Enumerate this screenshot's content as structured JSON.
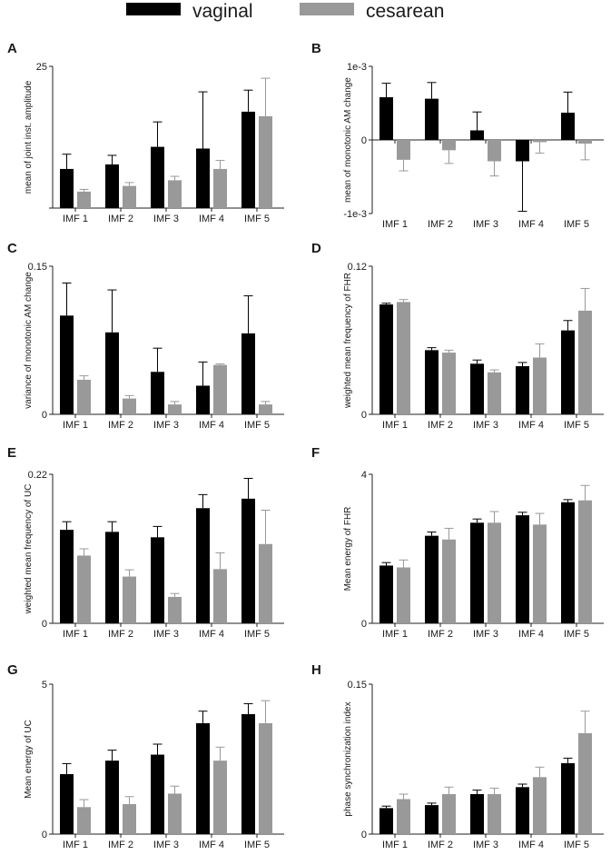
{
  "legend": {
    "vaginal": {
      "label": "vaginal",
      "color": "#000000"
    },
    "cesarean": {
      "label": "cesarean",
      "color": "#999999"
    }
  },
  "chart_data": [
    {
      "type": "bar",
      "panel": "A",
      "ylabel": "mean of joint inst. amplitude",
      "ylim": [
        0,
        25
      ],
      "yticks": [
        0,
        25
      ],
      "yticklabels": [
        "",
        "25"
      ],
      "categories": [
        "IMF 1",
        "IMF 2",
        "IMF 3",
        "IMF 4",
        "IMF 5"
      ],
      "series": [
        {
          "name": "vaginal",
          "values": [
            6.9,
            7.7,
            10.8,
            10.5,
            17.0
          ],
          "errors": [
            2.6,
            1.6,
            4.4,
            10.0,
            3.8
          ]
        },
        {
          "name": "cesarean",
          "values": [
            2.9,
            3.9,
            4.9,
            6.9,
            16.2
          ],
          "errors": [
            0.4,
            0.6,
            0.7,
            1.5,
            6.7
          ]
        }
      ]
    },
    {
      "type": "bar",
      "panel": "B",
      "ylabel": "mean of monotonic AM change",
      "ylim": [
        -0.001,
        0.001
      ],
      "yticks": [
        -0.001,
        0,
        0.001
      ],
      "yticklabels": [
        "-1e-3",
        "0",
        "1e-3"
      ],
      "categories": [
        "IMF 1",
        "IMF 2",
        "IMF 3",
        "IMF 4",
        "IMF 5"
      ],
      "series": [
        {
          "name": "vaginal",
          "values": [
            0.00058,
            0.00056,
            0.00013,
            -0.00029,
            0.00037
          ],
          "errors": [
            0.00019,
            0.00022,
            0.00025,
            0.00068,
            0.00028
          ]
        },
        {
          "name": "cesarean",
          "values": [
            -0.00027,
            -0.00014,
            -0.00029,
            -3e-05,
            -5e-05
          ],
          "errors": [
            0.00015,
            0.00018,
            0.0002,
            0.00015,
            0.00022
          ]
        }
      ]
    },
    {
      "type": "bar",
      "panel": "C",
      "ylabel": "variance of monotonic AM change",
      "ylim": [
        0,
        0.15
      ],
      "yticks": [
        0,
        0.15
      ],
      "yticklabels": [
        "0",
        "0.15"
      ],
      "categories": [
        "IMF 1",
        "IMF 2",
        "IMF 3",
        "IMF 4",
        "IMF 5"
      ],
      "series": [
        {
          "name": "vaginal",
          "values": [
            0.1,
            0.083,
            0.043,
            0.029,
            0.082
          ],
          "errors": [
            0.033,
            0.043,
            0.024,
            0.024,
            0.038
          ]
        },
        {
          "name": "cesarean",
          "values": [
            0.035,
            0.016,
            0.01,
            0.05,
            0.01
          ],
          "errors": [
            0.004,
            0.003,
            0.003,
            0.001,
            0.003
          ]
        }
      ]
    },
    {
      "type": "bar",
      "panel": "D",
      "ylabel": "weighted mean frequency of FHR",
      "ylim": [
        0,
        0.12
      ],
      "yticks": [
        0,
        0.12
      ],
      "yticklabels": [
        "0",
        "0.12"
      ],
      "categories": [
        "IMF 1",
        "IMF 2",
        "IMF 3",
        "IMF 4",
        "IMF 5"
      ],
      "series": [
        {
          "name": "vaginal",
          "values": [
            0.089,
            0.052,
            0.041,
            0.039,
            0.068
          ],
          "errors": [
            0.001,
            0.002,
            0.003,
            0.003,
            0.008
          ]
        },
        {
          "name": "cesarean",
          "values": [
            0.091,
            0.05,
            0.034,
            0.046,
            0.084
          ],
          "errors": [
            0.002,
            0.002,
            0.002,
            0.011,
            0.018
          ]
        }
      ]
    },
    {
      "type": "bar",
      "panel": "E",
      "ylabel": "weighted mean frequency of UC",
      "ylim": [
        0,
        0.22
      ],
      "yticks": [
        0,
        0.22
      ],
      "yticklabels": [
        "0",
        "0.22"
      ],
      "categories": [
        "IMF 1",
        "IMF 2",
        "IMF 3",
        "IMF 4",
        "IMF 5"
      ],
      "series": [
        {
          "name": "vaginal",
          "values": [
            0.138,
            0.135,
            0.127,
            0.17,
            0.184
          ],
          "errors": [
            0.012,
            0.015,
            0.016,
            0.02,
            0.03
          ]
        },
        {
          "name": "cesarean",
          "values": [
            0.1,
            0.069,
            0.039,
            0.08,
            0.117
          ],
          "errors": [
            0.01,
            0.01,
            0.005,
            0.024,
            0.05
          ]
        }
      ]
    },
    {
      "type": "bar",
      "panel": "F",
      "ylabel": "Mean energy of FHR",
      "ylim": [
        0,
        4
      ],
      "yticks": [
        0,
        4
      ],
      "yticklabels": [
        "0",
        "4"
      ],
      "categories": [
        "IMF 1",
        "IMF 2",
        "IMF 3",
        "IMF 4",
        "IMF 5"
      ],
      "series": [
        {
          "name": "vaginal",
          "values": [
            1.55,
            2.35,
            2.7,
            2.9,
            3.25
          ],
          "errors": [
            0.08,
            0.1,
            0.1,
            0.08,
            0.07
          ]
        },
        {
          "name": "cesarean",
          "values": [
            1.5,
            2.25,
            2.7,
            2.65,
            3.3
          ],
          "errors": [
            0.2,
            0.3,
            0.3,
            0.3,
            0.4
          ]
        }
      ]
    },
    {
      "type": "bar",
      "panel": "G",
      "ylabel": "Mean energy of UC",
      "ylim": [
        0,
        5
      ],
      "yticks": [
        0,
        5
      ],
      "yticklabels": [
        "0",
        "5"
      ],
      "categories": [
        "IMF 1",
        "IMF 2",
        "IMF 3",
        "IMF 4",
        "IMF 5"
      ],
      "series": [
        {
          "name": "vaginal",
          "values": [
            2.0,
            2.45,
            2.65,
            3.7,
            4.0
          ],
          "errors": [
            0.35,
            0.35,
            0.35,
            0.4,
            0.35
          ]
        },
        {
          "name": "cesarean",
          "values": [
            0.9,
            1.0,
            1.35,
            2.45,
            3.7
          ],
          "errors": [
            0.25,
            0.25,
            0.25,
            0.45,
            0.75
          ]
        }
      ]
    },
    {
      "type": "bar",
      "panel": "H",
      "ylabel": "phase synchronization index",
      "ylim": [
        0,
        0.15
      ],
      "yticks": [
        0,
        0.15
      ],
      "yticklabels": [
        "0",
        "0.15"
      ],
      "categories": [
        "IMF 1",
        "IMF 2",
        "IMF 3",
        "IMF 4",
        "IMF 5"
      ],
      "series": [
        {
          "name": "vaginal",
          "values": [
            0.026,
            0.029,
            0.04,
            0.047,
            0.071
          ],
          "errors": [
            0.002,
            0.002,
            0.004,
            0.003,
            0.005
          ]
        },
        {
          "name": "cesarean",
          "values": [
            0.035,
            0.04,
            0.04,
            0.057,
            0.101
          ],
          "errors": [
            0.005,
            0.007,
            0.006,
            0.01,
            0.022
          ]
        }
      ]
    }
  ]
}
